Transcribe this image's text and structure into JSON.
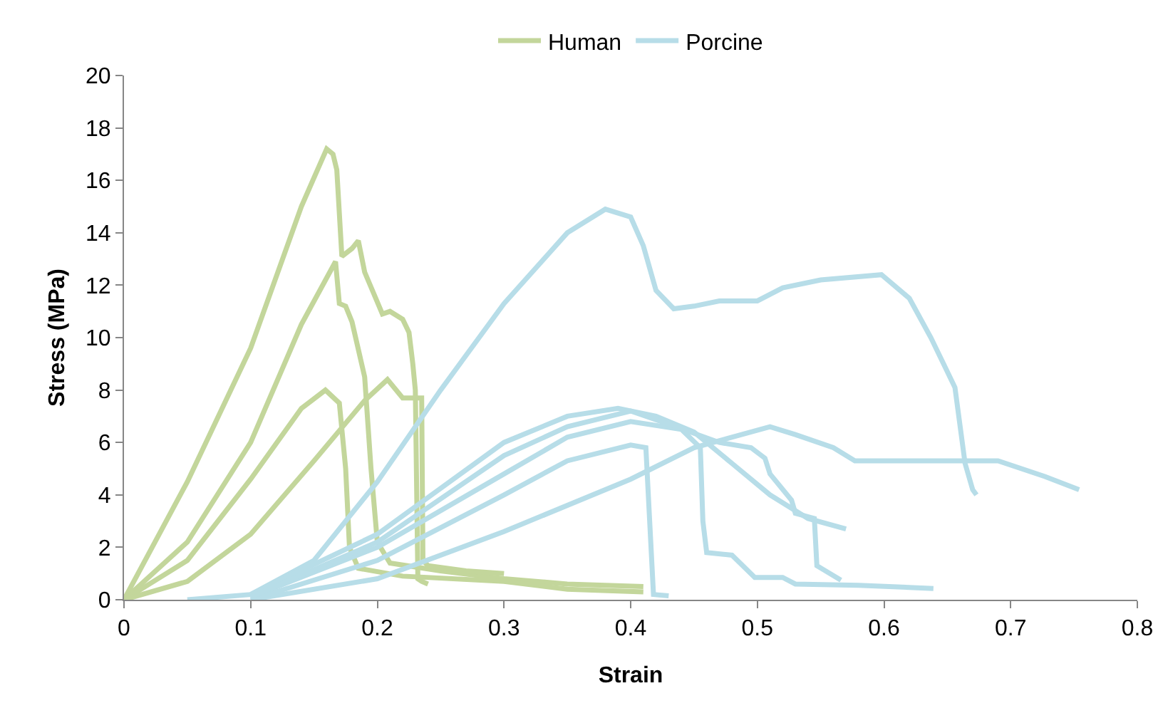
{
  "chart_data": {
    "type": "line",
    "xlabel": "Strain",
    "ylabel": "Stress (MPa)",
    "xlim": [
      0,
      0.8
    ],
    "xticks": [
      0,
      0.1,
      0.2,
      0.3,
      0.4,
      0.5,
      0.6,
      0.7,
      0.8
    ],
    "ylim": [
      0,
      20
    ],
    "yticks": [
      0,
      2,
      4,
      6,
      8,
      10,
      12,
      14,
      16,
      18,
      20
    ],
    "grid": false,
    "legend": "top",
    "marker": "none",
    "line_style": "solid",
    "series": [
      {
        "name": "Human",
        "color": "#c3d69b",
        "x": [
          0,
          0.05,
          0.1,
          0.14,
          0.16,
          0.165,
          0.168,
          0.172,
          0.18,
          0.185,
          0.19,
          0.204,
          0.21,
          0.22,
          0.225,
          0.228,
          0.23,
          0.232,
          0.235,
          0.24
        ],
        "values": [
          0,
          4.5,
          9.6,
          15.0,
          17.2,
          17.0,
          16.4,
          13.1,
          13.4,
          13.7,
          12.5,
          10.9,
          11.0,
          10.7,
          10.2,
          9.0,
          8.0,
          0.8,
          0.7,
          0.6
        ]
      },
      {
        "color": "#c3d69b",
        "x": [
          0,
          0.05,
          0.1,
          0.14,
          0.167,
          0.17,
          0.175,
          0.18,
          0.19,
          0.195,
          0.2,
          0.21,
          0.25,
          0.3,
          0.35,
          0.41
        ],
        "values": [
          0,
          2.2,
          6.0,
          10.5,
          12.9,
          11.3,
          11.2,
          10.6,
          8.5,
          5.0,
          2.2,
          1.4,
          1.1,
          0.8,
          0.6,
          0.5
        ]
      },
      {
        "color": "#c3d69b",
        "x": [
          0,
          0.05,
          0.1,
          0.14,
          0.159,
          0.17,
          0.175,
          0.178,
          0.185,
          0.22,
          0.3,
          0.35,
          0.41
        ],
        "values": [
          0,
          1.5,
          4.6,
          7.3,
          8.0,
          7.5,
          5.0,
          2.0,
          1.2,
          0.9,
          0.7,
          0.4,
          0.3
        ]
      },
      {
        "color": "#c3d69b",
        "x": [
          0,
          0.05,
          0.1,
          0.15,
          0.19,
          0.208,
          0.22,
          0.235,
          0.236,
          0.24,
          0.27,
          0.3
        ],
        "values": [
          0,
          0.7,
          2.5,
          5.3,
          7.6,
          8.4,
          7.7,
          7.7,
          1.5,
          1.3,
          1.1,
          1.0
        ]
      },
      {
        "name": "Porcine",
        "color": "#b7dde8",
        "x": [
          0.05,
          0.1,
          0.15,
          0.2,
          0.25,
          0.3,
          0.35,
          0.38,
          0.4,
          0.41,
          0.42,
          0.434,
          0.45,
          0.47,
          0.5,
          0.52,
          0.55,
          0.598,
          0.62,
          0.637,
          0.656,
          0.664,
          0.67,
          0.673
        ],
        "values": [
          0,
          0.2,
          1.5,
          4.5,
          8.0,
          11.3,
          14.0,
          14.9,
          14.6,
          13.5,
          11.8,
          11.1,
          11.2,
          11.4,
          11.4,
          11.9,
          12.2,
          12.4,
          11.5,
          10.0,
          8.1,
          5.2,
          4.2,
          4.0
        ]
      },
      {
        "color": "#b7dde8",
        "x": [
          0.1,
          0.2,
          0.3,
          0.4,
          0.45,
          0.51,
          0.53,
          0.56,
          0.577,
          0.69,
          0.727,
          0.754
        ],
        "values": [
          0,
          0.8,
          2.6,
          4.6,
          5.8,
          6.6,
          6.3,
          5.8,
          5.3,
          5.3,
          4.7,
          4.2
        ]
      },
      {
        "color": "#b7dde8",
        "x": [
          0.1,
          0.2,
          0.3,
          0.35,
          0.4,
          0.412,
          0.415,
          0.418,
          0.43
        ],
        "values": [
          0,
          1.5,
          4.0,
          5.3,
          5.9,
          5.8,
          3.0,
          0.2,
          0.15
        ]
      },
      {
        "color": "#b7dde8",
        "x": [
          0.1,
          0.2,
          0.3,
          0.35,
          0.4,
          0.44,
          0.455,
          0.457,
          0.46,
          0.48,
          0.498,
          0.52,
          0.53,
          0.58,
          0.639
        ],
        "values": [
          0.1,
          2.0,
          4.8,
          6.2,
          6.8,
          6.5,
          5.8,
          3.0,
          1.8,
          1.7,
          0.85,
          0.85,
          0.6,
          0.55,
          0.43
        ]
      },
      {
        "color": "#b7dde8",
        "x": [
          0.1,
          0.2,
          0.3,
          0.35,
          0.39,
          0.42,
          0.45,
          0.48,
          0.51,
          0.54,
          0.57
        ],
        "values": [
          0.2,
          2.5,
          6.0,
          7.0,
          7.3,
          7.0,
          6.4,
          5.2,
          4.0,
          3.1,
          2.7
        ]
      },
      {
        "color": "#b7dde8",
        "x": [
          0.1,
          0.2,
          0.3,
          0.35,
          0.4,
          0.43,
          0.47,
          0.495,
          0.506,
          0.51,
          0.527,
          0.53,
          0.545,
          0.547,
          0.566
        ],
        "values": [
          0.1,
          2.2,
          5.5,
          6.6,
          7.2,
          6.7,
          6.0,
          5.8,
          5.4,
          4.8,
          3.8,
          3.3,
          3.1,
          1.3,
          0.75
        ]
      }
    ]
  }
}
